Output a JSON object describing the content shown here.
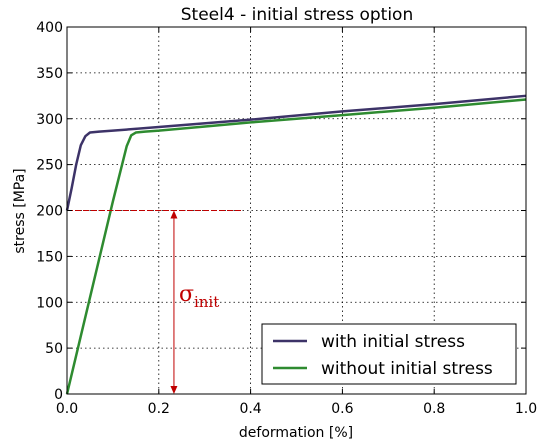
{
  "chart_data": {
    "type": "line",
    "title": "Steel4 - initial stress option",
    "xlabel": "deformation [%]",
    "ylabel": "stress [MPa]",
    "xlim": [
      0.0,
      1.0
    ],
    "ylim": [
      0,
      400
    ],
    "xticks": [
      "0.0",
      "0.2",
      "0.4",
      "0.6",
      "0.8",
      "1.0"
    ],
    "yticks": [
      "0",
      "50",
      "100",
      "150",
      "200",
      "250",
      "300",
      "350",
      "400"
    ],
    "grid": true,
    "legend_position": "bottom-right",
    "series": [
      {
        "name": "with initial stress",
        "color": "#3d3368",
        "x": [
          0.0,
          0.01,
          0.02,
          0.03,
          0.04,
          0.05,
          0.07,
          0.1,
          0.2,
          0.4,
          0.6,
          0.8,
          1.0
        ],
        "y": [
          200,
          224,
          250,
          271,
          281,
          285,
          286,
          287,
          291,
          299,
          308,
          316,
          325
        ]
      },
      {
        "name": "without initial stress",
        "color": "#2e8b30",
        "x": [
          0.0,
          0.05,
          0.1,
          0.13,
          0.14,
          0.15,
          0.17,
          0.2,
          0.4,
          0.6,
          0.8,
          1.0
        ],
        "y": [
          0,
          105,
          210,
          270,
          282,
          285,
          286,
          287,
          296,
          304,
          312,
          321
        ]
      }
    ],
    "annotations": {
      "sigma_symbol": "σ",
      "sigma_subscript": "init",
      "init_stress": 200,
      "ref_line_x_end": 0.38,
      "arrow_x": 0.233,
      "color": "#c00000"
    }
  }
}
